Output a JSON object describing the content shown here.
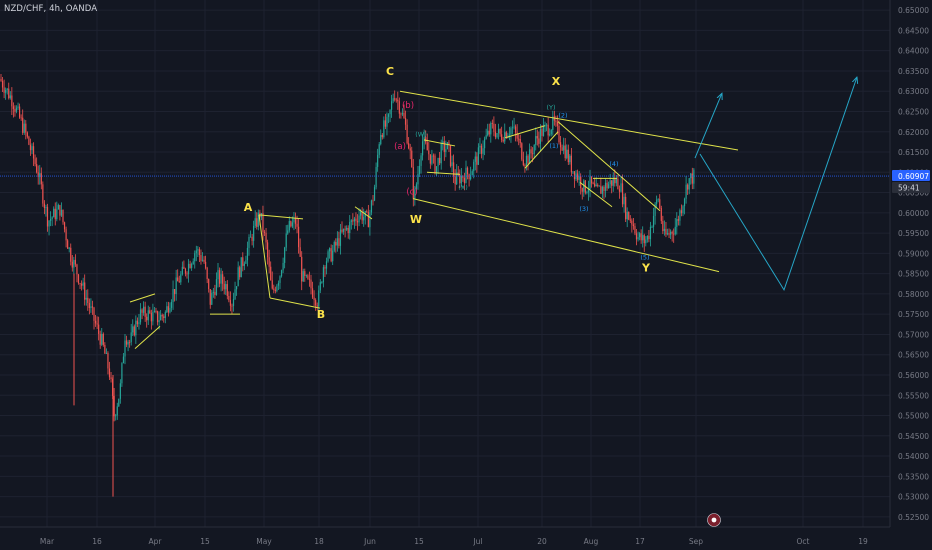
{
  "chart_data": {
    "type": "candlestick",
    "symbol_label": "NZD/CHF, 4h, OANDA",
    "y_axis": {
      "min": 0.5225,
      "max": 0.6525,
      "ticks": [
        0.525,
        0.53,
        0.535,
        0.54,
        0.545,
        0.55,
        0.555,
        0.56,
        0.565,
        0.57,
        0.575,
        0.58,
        0.585,
        0.59,
        0.595,
        0.6,
        0.605,
        0.61,
        0.615,
        0.62,
        0.625,
        0.63,
        0.635,
        0.64,
        0.645,
        0.65
      ],
      "tick_labels": [
        "0.52500",
        "0.53000",
        "0.53500",
        "0.54000",
        "0.54500",
        "0.55000",
        "0.55500",
        "0.56000",
        "0.56500",
        "0.57000",
        "0.57500",
        "0.58000",
        "0.58500",
        "0.59000",
        "0.59500",
        "0.60000",
        "0.60500",
        "0.61000",
        "0.61500",
        "0.62000",
        "0.62500",
        "0.63000",
        "0.63500",
        "0.64000",
        "0.64500",
        "0.65000"
      ]
    },
    "x_axis": {
      "labels": [
        "Mar",
        "16",
        "Apr",
        "15",
        "May",
        "18",
        "Jun",
        "15",
        "Jul",
        "20",
        "Aug",
        "17",
        "Sep",
        "Oct",
        "19"
      ]
    },
    "current_price_label": "0.60907",
    "current_price": 0.60907,
    "countdown_label": "59:41",
    "price_path": [
      [
        0,
        0.633
      ],
      [
        12,
        0.628
      ],
      [
        25,
        0.62
      ],
      [
        38,
        0.61
      ],
      [
        48,
        0.598
      ],
      [
        60,
        0.601
      ],
      [
        70,
        0.59
      ],
      [
        82,
        0.582
      ],
      [
        92,
        0.575
      ],
      [
        102,
        0.568
      ],
      [
        110,
        0.56
      ],
      [
        114,
        0.55
      ],
      [
        120,
        0.556
      ],
      [
        125,
        0.57
      ],
      [
        130,
        0.568
      ],
      [
        135,
        0.572
      ],
      [
        140,
        0.575
      ],
      [
        148,
        0.575
      ],
      [
        158,
        0.574
      ],
      [
        165,
        0.575
      ],
      [
        172,
        0.58
      ],
      [
        180,
        0.584
      ],
      [
        188,
        0.587
      ],
      [
        196,
        0.591
      ],
      [
        204,
        0.588
      ],
      [
        210,
        0.578
      ],
      [
        218,
        0.584
      ],
      [
        226,
        0.582
      ],
      [
        232,
        0.578
      ],
      [
        238,
        0.585
      ],
      [
        246,
        0.59
      ],
      [
        254,
        0.596
      ],
      [
        260,
        0.6
      ],
      [
        266,
        0.592
      ],
      [
        272,
        0.58
      ],
      [
        280,
        0.585
      ],
      [
        288,
        0.596
      ],
      [
        296,
        0.598
      ],
      [
        302,
        0.584
      ],
      [
        310,
        0.582
      ],
      [
        318,
        0.578
      ],
      [
        324,
        0.588
      ],
      [
        332,
        0.59
      ],
      [
        340,
        0.594
      ],
      [
        350,
        0.597
      ],
      [
        360,
        0.6
      ],
      [
        368,
        0.598
      ],
      [
        374,
        0.605
      ],
      [
        380,
        0.62
      ],
      [
        388,
        0.622
      ],
      [
        394,
        0.63
      ],
      [
        400,
        0.626
      ],
      [
        405,
        0.622
      ],
      [
        410,
        0.615
      ],
      [
        414,
        0.603
      ],
      [
        418,
        0.61
      ],
      [
        422,
        0.618
      ],
      [
        430,
        0.614
      ],
      [
        436,
        0.611
      ],
      [
        442,
        0.616
      ],
      [
        448,
        0.616
      ],
      [
        455,
        0.608
      ],
      [
        462,
        0.609
      ],
      [
        470,
        0.61
      ],
      [
        478,
        0.614
      ],
      [
        485,
        0.618
      ],
      [
        492,
        0.621
      ],
      [
        500,
        0.619
      ],
      [
        506,
        0.62
      ],
      [
        512,
        0.621
      ],
      [
        518,
        0.618
      ],
      [
        524,
        0.613
      ],
      [
        530,
        0.614
      ],
      [
        536,
        0.618
      ],
      [
        542,
        0.62
      ],
      [
        548,
        0.621
      ],
      [
        554,
        0.622
      ],
      [
        560,
        0.618
      ],
      [
        566,
        0.615
      ],
      [
        572,
        0.611
      ],
      [
        578,
        0.609
      ],
      [
        584,
        0.606
      ],
      [
        590,
        0.607
      ],
      [
        596,
        0.605
      ],
      [
        602,
        0.606
      ],
      [
        608,
        0.607
      ],
      [
        614,
        0.608
      ],
      [
        620,
        0.607
      ],
      [
        626,
        0.6
      ],
      [
        632,
        0.598
      ],
      [
        638,
        0.594
      ],
      [
        644,
        0.593
      ],
      [
        648,
        0.594
      ],
      [
        654,
        0.6
      ],
      [
        658,
        0.604
      ],
      [
        664,
        0.594
      ],
      [
        670,
        0.595
      ],
      [
        676,
        0.597
      ],
      [
        682,
        0.602
      ],
      [
        688,
        0.608
      ],
      [
        694,
        0.609
      ]
    ],
    "wave_labels": [
      {
        "text": "C",
        "price": 0.634,
        "x": 390,
        "color": "#fbe24a",
        "size": "large"
      },
      {
        "text": "X",
        "price": 0.6315,
        "x": 556,
        "color": "#fbe24a",
        "size": "large"
      },
      {
        "text": "A",
        "price": 0.6004,
        "x": 248,
        "color": "#fbe24a",
        "size": "large"
      },
      {
        "text": "B",
        "price": 0.574,
        "x": 321,
        "color": "#fbe24a",
        "size": "large"
      },
      {
        "text": "W",
        "price": 0.5975,
        "x": 416,
        "color": "#fbe24a",
        "size": "large"
      },
      {
        "text": "Y",
        "price": 0.5855,
        "x": 646,
        "color": "#fbe24a",
        "size": "large"
      },
      {
        "text": "(b)",
        "price": 0.6258,
        "x": 408,
        "color": "#e9266b",
        "size": "small"
      },
      {
        "text": "(a)",
        "price": 0.6157,
        "x": 400,
        "color": "#e9266b",
        "size": "small"
      },
      {
        "text": "(c)",
        "price": 0.6045,
        "x": 412,
        "color": "#e9266b",
        "size": "small"
      },
      {
        "text": "(W)",
        "price": 0.6188,
        "x": 421,
        "color": "#26a69a",
        "size": "tiny"
      },
      {
        "text": "(X)",
        "price": 0.6058,
        "x": 463,
        "color": "#26a69a",
        "size": "tiny"
      },
      {
        "text": "(Y)",
        "price": 0.6255,
        "x": 551,
        "color": "#26a69a",
        "size": "tiny"
      },
      {
        "text": "(1)",
        "price": 0.616,
        "x": 554,
        "color": "#2196f3",
        "size": "tiny"
      },
      {
        "text": "(2)",
        "price": 0.6235,
        "x": 563,
        "color": "#2196f3",
        "size": "tiny"
      },
      {
        "text": "(3)",
        "price": 0.6005,
        "x": 584,
        "color": "#2196f3",
        "size": "tiny"
      },
      {
        "text": "(4)",
        "price": 0.6115,
        "x": 614,
        "color": "#2196f3",
        "size": "tiny"
      },
      {
        "text": "(5)",
        "price": 0.5885,
        "x": 645,
        "color": "#2196f3",
        "size": "tiny"
      }
    ],
    "trendlines": [
      {
        "color": "#e0e34a",
        "from": [
          400,
          0.63
        ],
        "to": [
          738,
          0.6155
        ]
      },
      {
        "color": "#e0e34a",
        "from": [
          413,
          0.6035
        ],
        "to": [
          719,
          0.5855
        ]
      },
      {
        "color": "#e0e34a",
        "from": [
          259,
          0.5995
        ],
        "to": [
          303,
          0.5985
        ]
      },
      {
        "color": "#e0e34a",
        "from": [
          270,
          0.579
        ],
        "to": [
          320,
          0.5765
        ]
      },
      {
        "color": "#e0e34a",
        "from": [
          259,
          0.5995
        ],
        "to": [
          270,
          0.579
        ]
      },
      {
        "color": "#e0e34a",
        "from": [
          210,
          0.575
        ],
        "to": [
          240,
          0.575
        ]
      },
      {
        "color": "#e0e34a",
        "from": [
          130,
          0.578
        ],
        "to": [
          155,
          0.58
        ]
      },
      {
        "color": "#e0e34a",
        "from": [
          135,
          0.5665
        ],
        "to": [
          160,
          0.572
        ]
      },
      {
        "color": "#e0e34a",
        "from": [
          355,
          0.6015
        ],
        "to": [
          372,
          0.5985
        ]
      },
      {
        "color": "#e0e34a",
        "from": [
          424,
          0.618
        ],
        "to": [
          455,
          0.6165
        ]
      },
      {
        "color": "#e0e34a",
        "from": [
          427,
          0.61
        ],
        "to": [
          460,
          0.6095
        ]
      },
      {
        "color": "#e0e34a",
        "from": [
          505,
          0.6185
        ],
        "to": [
          545,
          0.6215
        ]
      },
      {
        "color": "#e0e34a",
        "from": [
          525,
          0.611
        ],
        "to": [
          558,
          0.62
        ]
      },
      {
        "color": "#e0e34a",
        "from": [
          558,
          0.6225
        ],
        "to": [
          660,
          0.6005
        ]
      },
      {
        "color": "#e0e34a",
        "from": [
          580,
          0.6075
        ],
        "to": [
          612,
          0.6015
        ]
      },
      {
        "color": "#e0e34a",
        "from": [
          593,
          0.6085
        ],
        "to": [
          617,
          0.6085
        ]
      }
    ],
    "projection_lines": [
      {
        "color": "#26a6c7",
        "points": [
          [
            695,
            0.6135
          ],
          [
            722,
            0.6295
          ]
        ],
        "arrow": true
      },
      {
        "color": "#26a6c7",
        "points": [
          [
            700,
            0.6145
          ],
          [
            784,
            0.581
          ],
          [
            857,
            0.6335
          ]
        ],
        "arrow": true
      }
    ],
    "arrow_marker_near": {
      "x": 700,
      "price": 0.6145
    }
  }
}
